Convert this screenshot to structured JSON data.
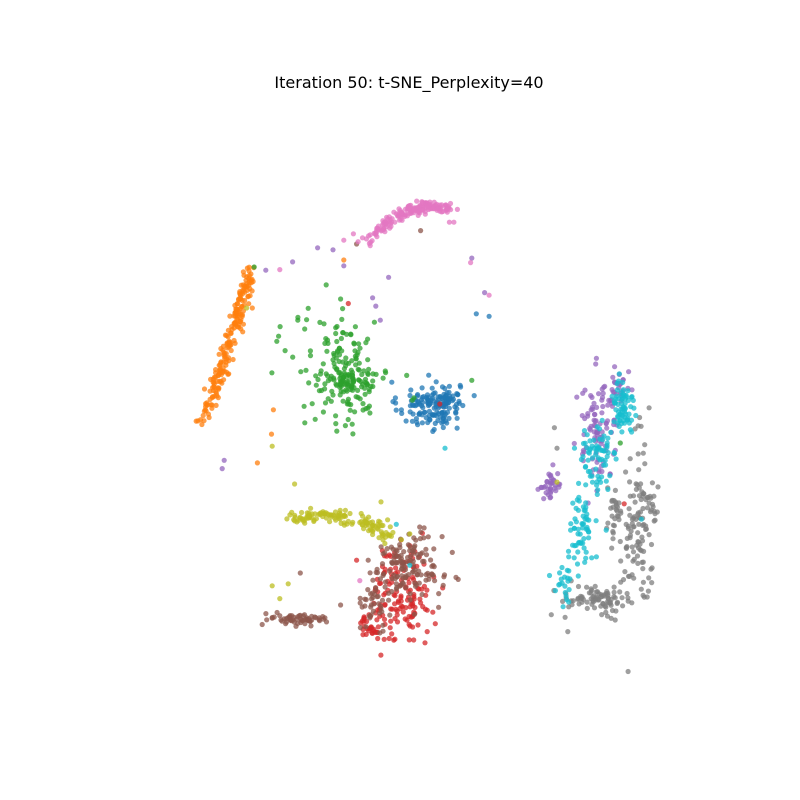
{
  "chart_data": {
    "type": "scatter",
    "title": "Iteration 50: t-SNE_Perplexity=40",
    "xlabel": "",
    "ylabel": "",
    "axes_visible": false,
    "grid": false,
    "legend": "none",
    "xlim": [
      0,
      100
    ],
    "ylim": [
      0,
      100
    ],
    "series": [
      {
        "color": "#1f77b4",
        "clusters": [
          {
            "cx": 51.4,
            "cy": 52.2,
            "sx": 2.4,
            "sy": 1.9,
            "n": 120
          },
          {
            "cx": 54.6,
            "cy": 53.2,
            "sx": 1.2,
            "sy": 0.8,
            "n": 35
          }
        ],
        "extra": [
          [
            60.8,
            66.2
          ],
          [
            58.8,
            66.6
          ],
          [
            49.3,
            53.1
          ],
          [
            52.9,
            51.0
          ],
          [
            47.1,
            51.6
          ]
        ]
      },
      {
        "color": "#ff7f0e",
        "line_from": [
          23.8,
          73.6
        ],
        "line_to": [
          16.1,
          49.3
        ],
        "n": 200,
        "spread": 0.6,
        "extra": [
          [
            23.8,
            67.5
          ],
          [
            38.1,
            75.0
          ],
          [
            27.1,
            51.6
          ],
          [
            24.6,
            43.3
          ],
          [
            26.8,
            47.8
          ]
        ]
      },
      {
        "color": "#2ca02c",
        "clusters": [
          {
            "cx": 37.9,
            "cy": 57.5,
            "sx": 3.8,
            "sy": 4.5,
            "n": 160
          },
          {
            "cx": 39.1,
            "cy": 56.2,
            "sx": 1.4,
            "sy": 0.9,
            "n": 50
          }
        ],
        "extra": [
          [
            24.1,
            73.9
          ],
          [
            27.9,
            63.1
          ],
          [
            37.6,
            68.9
          ],
          [
            36.4,
            59.4
          ],
          [
            58.1,
            56.2
          ],
          [
            81.3,
            46.4
          ],
          [
            48.8,
            53.1
          ],
          [
            40.4,
            61.9
          ]
        ]
      },
      {
        "color": "#d62728",
        "clusters": [
          {
            "cx": 47.3,
            "cy": 22.7,
            "sx": 2.2,
            "sy": 3.8,
            "n": 140
          },
          {
            "cx": 42.2,
            "cy": 17.8,
            "sx": 1.0,
            "sy": 1.0,
            "n": 30
          }
        ],
        "extra": [
          [
            38.8,
            68.2
          ],
          [
            53.1,
            52.5
          ],
          [
            81.9,
            36.9
          ],
          [
            40.1,
            28.1
          ]
        ]
      },
      {
        "color": "#9467bd",
        "clusters": [
          {
            "cx": 77.8,
            "cy": 48.8,
            "sx": 1.6,
            "sy": 4.2,
            "n": 90
          },
          {
            "cx": 70.4,
            "cy": 39.9,
            "sx": 1.0,
            "sy": 1.1,
            "n": 35
          },
          {
            "cx": 81.3,
            "cy": 54.9,
            "sx": 0.7,
            "sy": 1.4,
            "n": 25
          }
        ],
        "extra": [
          [
            19.1,
            42.4
          ],
          [
            19.4,
            43.7
          ],
          [
            43.1,
            67.8
          ],
          [
            38.1,
            74.1
          ],
          [
            36.4,
            76.6
          ],
          [
            34.0,
            76.9
          ],
          [
            25.9,
            73.4
          ],
          [
            30.1,
            74.7
          ],
          [
            45.1,
            72.3
          ],
          [
            58.1,
            75.3
          ],
          [
            60.1,
            69.9
          ],
          [
            43.8,
            65.6
          ],
          [
            42.6,
            69.1
          ]
        ]
      },
      {
        "color": "#8c564b",
        "clusters": [
          {
            "cx": 48.1,
            "cy": 26.9,
            "sx": 2.7,
            "sy": 2.7,
            "n": 130
          },
          {
            "cx": 43.1,
            "cy": 21.9,
            "sx": 1.1,
            "sy": 1.9,
            "n": 40
          },
          {
            "cx": 30.8,
            "cy": 18.9,
            "sx": 2.2,
            "sy": 0.5,
            "n": 60
          }
        ],
        "extra": [
          [
            41.9,
            28.1
          ],
          [
            50.1,
            79.6
          ],
          [
            40.1,
            77.5
          ],
          [
            50.6,
            31.6
          ],
          [
            31.3,
            26.1
          ],
          [
            37.6,
            21.1
          ]
        ]
      },
      {
        "color": "#e377c2",
        "arc": true,
        "arc_points": [
          [
            41.4,
            77.5
          ],
          [
            46.3,
            82.5
          ],
          [
            50.3,
            84.4
          ],
          [
            54.3,
            82.8
          ]
        ],
        "n": 170,
        "spread": 0.7,
        "extra": [
          [
            39.6,
            79.1
          ],
          [
            38.1,
            78.1
          ],
          [
            60.8,
            69.5
          ],
          [
            57.9,
            74.6
          ],
          [
            40.6,
            24.9
          ],
          [
            28.1,
            73.5
          ],
          [
            55.3,
            80.9
          ],
          [
            54.6,
            80.9
          ]
        ]
      },
      {
        "color": "#7f7f7f",
        "clusters": [
          {
            "cx": 84.3,
            "cy": 34.2,
            "sx": 1.4,
            "sy": 6.0,
            "n": 120
          },
          {
            "cx": 77.5,
            "cy": 21.9,
            "sx": 2.7,
            "sy": 1.2,
            "n": 90
          },
          {
            "cx": 80.4,
            "cy": 35.9,
            "sx": 0.6,
            "sy": 2.2,
            "n": 25
          }
        ],
        "extra": [
          [
            71.0,
            48.8
          ],
          [
            71.4,
            45.6
          ],
          [
            85.8,
            51.9
          ],
          [
            84.1,
            49.1
          ],
          [
            84.1,
            44.7
          ]
        ]
      },
      {
        "color": "#bcbd22",
        "arc": true,
        "arc_points": [
          [
            30.1,
            34.4
          ],
          [
            36.1,
            35.9
          ],
          [
            41.9,
            34.7
          ],
          [
            45.0,
            31.9
          ]
        ],
        "n": 130,
        "spread": 0.9,
        "extra": [
          [
            30.4,
            40.0
          ],
          [
            32.9,
            36.2
          ],
          [
            43.9,
            37.2
          ],
          [
            26.9,
            24.1
          ],
          [
            28.1,
            22.1
          ],
          [
            29.4,
            24.4
          ],
          [
            48.4,
            32.2
          ],
          [
            47.1,
            31.3
          ],
          [
            71.4,
            40.3
          ],
          [
            22.9,
            67.5
          ],
          [
            26.9,
            45.9
          ]
        ]
      },
      {
        "color": "#17becf",
        "clusters": [
          {
            "cx": 81.6,
            "cy": 52.1,
            "sx": 0.9,
            "sy": 2.5,
            "n": 70
          },
          {
            "cx": 77.8,
            "cy": 43.5,
            "sx": 1.6,
            "sy": 3.0,
            "n": 70
          },
          {
            "cx": 74.9,
            "cy": 32.7,
            "sx": 1.0,
            "sy": 3.5,
            "n": 60
          },
          {
            "cx": 72.4,
            "cy": 23.7,
            "sx": 0.8,
            "sy": 1.5,
            "n": 20
          }
        ],
        "extra": [
          [
            46.3,
            33.7
          ],
          [
            53.9,
            45.6
          ],
          [
            48.4,
            27.3
          ],
          [
            84.6,
            34.5
          ],
          [
            79.1,
            32.8
          ]
        ]
      }
    ]
  }
}
